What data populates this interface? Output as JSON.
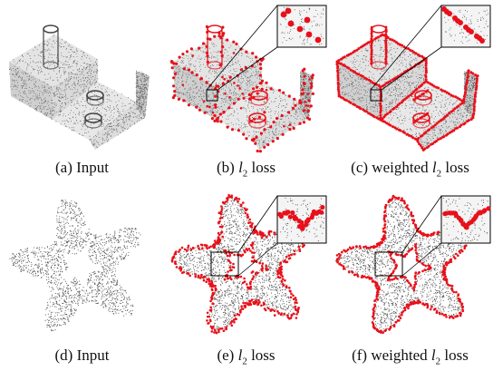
{
  "figure": {
    "row1": {
      "captions": [
        {
          "label": "(a)",
          "text": "Input",
          "math": "",
          "sub": ""
        },
        {
          "label": "(b)",
          "text": "loss",
          "math": "l",
          "sub": "2"
        },
        {
          "label": "(c)",
          "text": "loss",
          "prefix": "weighted",
          "math": "l",
          "sub": "2"
        }
      ]
    },
    "row2": {
      "captions": [
        {
          "label": "(d)",
          "text": "Input",
          "math": "",
          "sub": ""
        },
        {
          "label": "(e)",
          "text": "loss",
          "math": "l",
          "sub": "2"
        },
        {
          "label": "(f)",
          "text": "loss",
          "prefix": "weighted",
          "math": "l",
          "sub": "2"
        }
      ]
    },
    "colors": {
      "points": "#555555",
      "edges": "#e8101a",
      "zoom_frame": "#000000"
    }
  }
}
